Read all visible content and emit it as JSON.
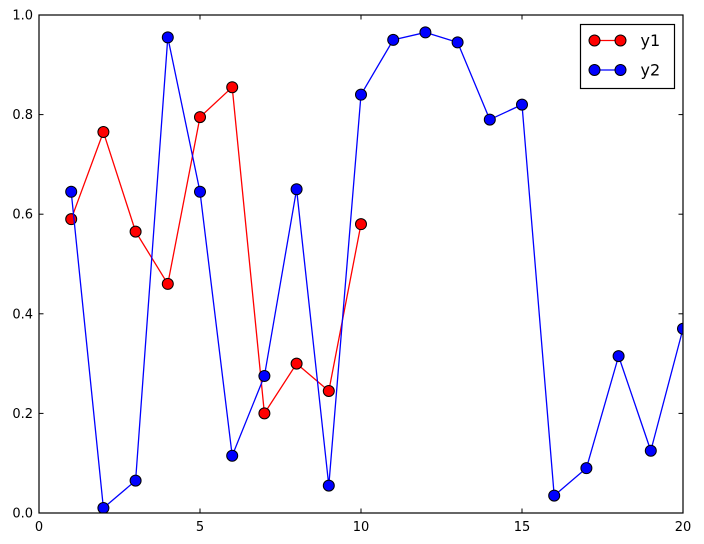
{
  "figure": {
    "background_color": "#ffffff",
    "frame_color": "#000000"
  },
  "chart_data": {
    "type": "line",
    "title": "",
    "xlabel": "",
    "ylabel": "",
    "xlim": [
      0,
      20
    ],
    "ylim": [
      0.0,
      1.0
    ],
    "grid": false,
    "xticks": {
      "values": [
        0,
        5,
        10,
        15,
        20
      ],
      "labels": [
        "0",
        "5",
        "10",
        "15",
        "20"
      ]
    },
    "yticks": {
      "values": [
        0.0,
        0.2,
        0.4,
        0.6,
        0.8,
        1.0
      ],
      "labels": [
        "0.0",
        "0.2",
        "0.4",
        "0.6",
        "0.8",
        "1.0"
      ]
    },
    "legend": {
      "position": "upper right",
      "background": "#ffffff",
      "border_color": "#000000"
    },
    "series": [
      {
        "name": "y1",
        "color": "#ff0000",
        "marker": "circle",
        "marker_edge_color": "#000000",
        "x": [
          1,
          2,
          3,
          4,
          5,
          6,
          7,
          8,
          9,
          10
        ],
        "y": [
          0.59,
          0.765,
          0.565,
          0.46,
          0.795,
          0.855,
          0.2,
          0.3,
          0.245,
          0.58
        ]
      },
      {
        "name": "y2",
        "color": "#0000ff",
        "marker": "circle",
        "marker_edge_color": "#000000",
        "x": [
          1,
          2,
          3,
          4,
          5,
          6,
          7,
          8,
          9,
          10,
          11,
          12,
          13,
          14,
          15,
          16,
          17,
          18,
          19,
          20
        ],
        "y": [
          0.645,
          0.01,
          0.065,
          0.955,
          0.645,
          0.115,
          0.275,
          0.65,
          0.055,
          0.84,
          0.95,
          0.965,
          0.945,
          0.79,
          0.82,
          0.035,
          0.09,
          0.315,
          0.125,
          0.37
        ]
      }
    ]
  }
}
